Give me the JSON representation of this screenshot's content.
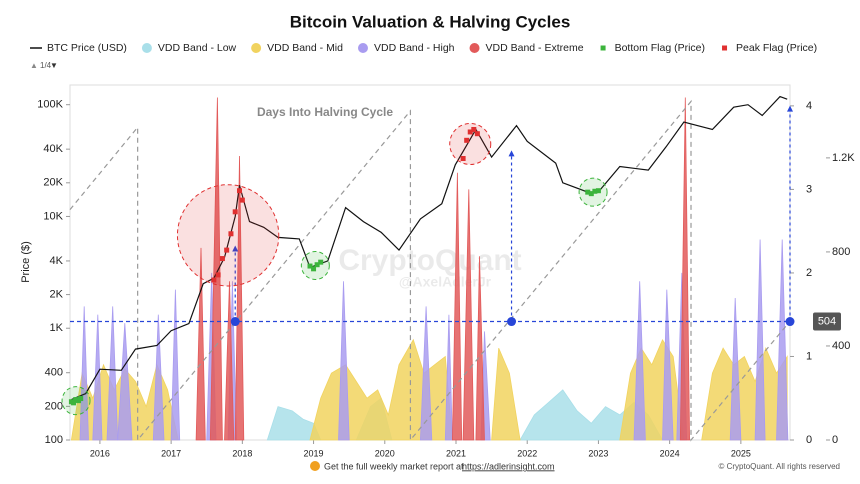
{
  "chart_data": {
    "type": "line",
    "title": "Bitcoin Valuation & Halving Cycles",
    "legend_pager": "1/4",
    "y_label": "Price ($)",
    "annotation": "Days Into Halving Cycle",
    "watermark": [
      "CryptoQuant",
      "@AxelAdlerJr"
    ],
    "footer": "Get the full weekly market report at",
    "footer_link": "https://adlerinsight.com",
    "copyright": "© CryptoQuant. All rights reserved",
    "xlim": [
      2015.58,
      2025.69
    ],
    "xticks": [
      2016,
      2017,
      2018,
      2019,
      2020,
      2021,
      2022,
      2023,
      2024,
      2025
    ],
    "log_y": true,
    "ylim": [
      100,
      150000
    ],
    "yticks": [
      100,
      200,
      400,
      {
        "value": 1000,
        "label": "1K"
      },
      {
        "value": 2000,
        "label": "2K"
      },
      {
        "value": 4000,
        "label": "4K"
      },
      {
        "value": 10000,
        "label": "10K"
      },
      {
        "value": 20000,
        "label": "20K"
      },
      {
        "value": 40000,
        "label": "40K"
      },
      {
        "value": 100000,
        "label": "100K"
      }
    ],
    "y2lim": [
      0,
      4.25
    ],
    "y2ticks": [
      0,
      1,
      2,
      3,
      4
    ],
    "y3lim": [
      0,
      1510
    ],
    "y3ticks": [
      0,
      400,
      800,
      {
        "value": 1200,
        "label": "1.2K"
      }
    ],
    "series": [
      {
        "name": "BTC Price (USD)",
        "type": "line",
        "color": "#111111",
        "x": [
          2015.6,
          2015.8,
          2016.0,
          2016.3,
          2016.5,
          2016.8,
          2017.0,
          2017.25,
          2017.45,
          2017.6,
          2017.75,
          2017.9,
          2017.96,
          2018.1,
          2018.3,
          2018.5,
          2018.8,
          2018.95,
          2019.2,
          2019.45,
          2019.7,
          2019.95,
          2020.2,
          2020.5,
          2020.8,
          2020.99,
          2021.28,
          2021.5,
          2021.85,
          2022.0,
          2022.4,
          2022.5,
          2022.85,
          2023.0,
          2023.3,
          2023.7,
          2023.95,
          2024.2,
          2024.6,
          2024.9,
          2025.1,
          2025.3,
          2025.55,
          2025.65
        ],
        "values": [
          230,
          260,
          430,
          420,
          650,
          700,
          950,
          1100,
          2500,
          2800,
          4300,
          10000,
          19000,
          9000,
          8000,
          6500,
          6300,
          3500,
          4000,
          12000,
          9000,
          7200,
          5000,
          9500,
          13000,
          29000,
          60000,
          34000,
          65000,
          47000,
          30000,
          20000,
          16500,
          16600,
          28000,
          26000,
          42000,
          70000,
          60000,
          95000,
          100000,
          80000,
          118000,
          112000
        ]
      },
      {
        "name": "VDD Band - Low",
        "type": "area",
        "axis": "y2",
        "color": "#a9dfe9",
        "x": [
          2018.35,
          2018.5,
          2018.7,
          2018.85,
          2019.0,
          2019.1,
          null,
          2019.6,
          2019.8,
          2019.95,
          2020.1,
          null,
          2021.9,
          2022.1,
          2022.3,
          2022.5,
          2022.7,
          2022.9,
          2023.1,
          2023.3,
          2023.5,
          2023.7,
          2023.9
        ],
        "values": [
          0,
          0.4,
          0.35,
          0.25,
          0.2,
          0,
          null,
          0,
          0.4,
          0.5,
          0,
          null,
          0,
          0.3,
          0.45,
          0.6,
          0.35,
          0.2,
          0.4,
          0.3,
          0.45,
          0.3,
          0
        ]
      },
      {
        "name": "VDD Band - Mid",
        "type": "area",
        "axis": "y2",
        "color": "#f1d35f",
        "x": [
          2015.6,
          2015.75,
          2015.9,
          2016.05,
          2016.2,
          2016.35,
          2016.5,
          2016.65,
          2016.8,
          2016.95,
          2017.1,
          null,
          2018.95,
          2019.1,
          2019.25,
          2019.45,
          2019.6,
          2019.75,
          2019.9,
          2020.05,
          2020.2,
          2020.4,
          2020.55,
          2020.7,
          2020.85,
          2020.95,
          null,
          2021.5,
          2021.6,
          2021.75,
          2021.9,
          null,
          2023.3,
          2023.45,
          2023.6,
          2023.75,
          2023.9,
          2024.05,
          2024.2,
          null,
          2024.45,
          2024.6,
          2024.75,
          2024.9,
          2025.05,
          2025.2,
          2025.35,
          2025.5,
          2025.65
        ],
        "values": [
          0,
          0.8,
          0.5,
          0.9,
          0.6,
          0.85,
          0.7,
          0.4,
          0.9,
          0.6,
          0,
          null,
          0,
          0.5,
          0.8,
          0.9,
          0.7,
          0.5,
          0.6,
          0.3,
          0.9,
          1.2,
          0.8,
          0.9,
          1.0,
          0,
          null,
          0,
          1.1,
          0.8,
          0,
          null,
          0,
          0.8,
          1.1,
          0.9,
          1.2,
          1.0,
          0,
          null,
          0,
          0.8,
          1.1,
          0.9,
          1.0,
          0.7,
          1.1,
          0.8,
          1.0
        ]
      },
      {
        "name": "VDD Band - High",
        "type": "area",
        "axis": "y2",
        "color": "#a99cf0",
        "x": [
          2015.72,
          2015.78,
          2015.84,
          null,
          2015.9,
          2015.97,
          2016.03,
          null,
          2016.1,
          2016.18,
          2016.25,
          null,
          2016.25,
          2016.35,
          2016.45,
          null,
          2016.75,
          2016.82,
          2016.9,
          null,
          2017.0,
          2017.06,
          2017.12,
          null,
          2017.5,
          2017.57,
          2017.63,
          null,
          2017.8,
          2017.86,
          2017.92,
          null,
          2019.35,
          2019.42,
          2019.5,
          null,
          2020.5,
          2020.58,
          2020.66,
          null,
          2020.85,
          2020.9,
          2020.95,
          null,
          2021.35,
          2021.4,
          2021.48,
          null,
          2023.5,
          2023.58,
          2023.66,
          null,
          2023.9,
          2023.96,
          2024.05,
          null,
          2024.1,
          2024.17,
          2024.24,
          null,
          2024.85,
          2024.92,
          2025.0,
          null,
          2025.2,
          2025.27,
          2025.34,
          null,
          2025.5,
          2025.58,
          2025.66
        ],
        "values": [
          0,
          1.6,
          0,
          null,
          0,
          1.5,
          0,
          null,
          0,
          1.6,
          0,
          null,
          0,
          1.4,
          0,
          null,
          0,
          1.5,
          0,
          null,
          0,
          1.8,
          0,
          null,
          0,
          2.0,
          0,
          null,
          0,
          1.9,
          0,
          null,
          0,
          1.9,
          0,
          null,
          0,
          1.6,
          0,
          null,
          0,
          1.5,
          0,
          null,
          0,
          1.3,
          0,
          null,
          0,
          1.9,
          0,
          null,
          0,
          1.8,
          0,
          null,
          0,
          2.0,
          0,
          null,
          0,
          1.7,
          0,
          null,
          0,
          2.4,
          0,
          null,
          0,
          2.4,
          0
        ]
      },
      {
        "name": "VDD Band - Extreme",
        "type": "area",
        "axis": "y2",
        "color": "#e25a5a",
        "x": [
          2017.35,
          2017.42,
          2017.48,
          null,
          2017.55,
          2017.65,
          2017.72,
          null,
          2017.75,
          2017.82,
          2017.88,
          null,
          2017.9,
          2017.96,
          2018.02,
          null,
          2020.95,
          2021.02,
          2021.08,
          null,
          2021.1,
          2021.18,
          2021.25,
          null,
          2021.28,
          2021.33,
          2021.4,
          null,
          2024.15,
          2024.22,
          2024.28
        ],
        "values": [
          0,
          2.3,
          0,
          null,
          0,
          4.1,
          0,
          null,
          0,
          1.9,
          0,
          null,
          0,
          3.4,
          0,
          null,
          0,
          3.2,
          0,
          null,
          0,
          3.0,
          0,
          null,
          0,
          2.2,
          0,
          null,
          0,
          4.1,
          0
        ]
      },
      {
        "name": "Bottom Flag (Price)",
        "type": "scatter",
        "color": "#3cb43c",
        "x": [
          2015.6,
          2015.63,
          2015.66,
          2015.7,
          2015.73,
          2018.95,
          2019.0,
          2019.05,
          2019.1,
          2022.85,
          2022.9,
          2022.95,
          2023.0
        ],
        "values": [
          220,
          215,
          230,
          225,
          235,
          3600,
          3400,
          3700,
          3900,
          16500,
          16000,
          16800,
          17000
        ]
      },
      {
        "name": "Peak Flag (Price)",
        "type": "scatter",
        "color": "#e03030",
        "x": [
          2017.6,
          2017.66,
          2017.72,
          2017.78,
          2017.84,
          2017.9,
          2017.96,
          2018.0,
          2021.1,
          2021.15,
          2021.2,
          2021.25,
          2021.3
        ],
        "values": [
          2700,
          3000,
          4200,
          5000,
          7000,
          11000,
          17000,
          14000,
          33000,
          48000,
          57000,
          60000,
          55000
        ]
      }
    ],
    "halving_days": {
      "axis": "y3",
      "color": "#999999",
      "x": [
        2015.58,
        2016.53,
        2016.53,
        2020.36,
        2020.36,
        2024.3,
        2024.3,
        2025.69
      ],
      "values": [
        980,
        1330,
        0,
        1400,
        0,
        1440,
        0,
        505
      ]
    },
    "cycle_marker": {
      "value": 504,
      "color": "#2846d8",
      "x": [
        2017.9,
        2021.78,
        2025.69
      ],
      "tips": [
        5500,
        39000,
        98000
      ]
    }
  }
}
